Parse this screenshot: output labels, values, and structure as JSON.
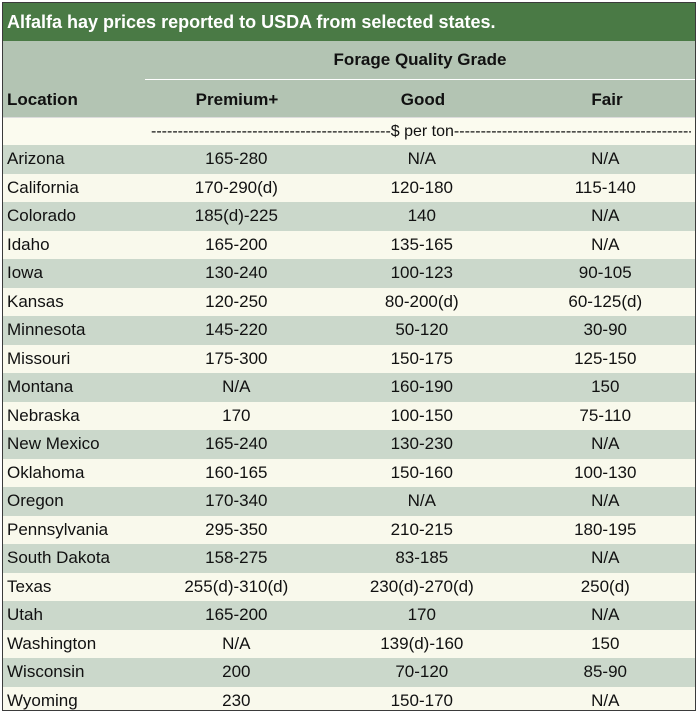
{
  "title": "Alfalfa hay prices reported to USDA from selected states.",
  "header": {
    "group": "Forage Quality Grade",
    "location": "Location",
    "columns": [
      "Premium+",
      "Good",
      "Fair"
    ]
  },
  "unit_row": "---------------------------------------------$ per ton-----------------------------------------------",
  "rows": [
    {
      "location": "Arizona",
      "premium": "165-280",
      "good": "N/A",
      "fair": "N/A"
    },
    {
      "location": "California",
      "premium": "170-290(d)",
      "good": "120-180",
      "fair": "115-140"
    },
    {
      "location": "Colorado",
      "premium": "185(d)-225",
      "good": "140",
      "fair": "N/A"
    },
    {
      "location": "Idaho",
      "premium": "165-200",
      "good": "135-165",
      "fair": "N/A"
    },
    {
      "location": "Iowa",
      "premium": "130-240",
      "good": "100-123",
      "fair": "90-105"
    },
    {
      "location": "Kansas",
      "premium": "120-250",
      "good": "80-200(d)",
      "fair": "60-125(d)"
    },
    {
      "location": "Minnesota",
      "premium": "145-220",
      "good": "50-120",
      "fair": "30-90"
    },
    {
      "location": "Missouri",
      "premium": "175-300",
      "good": "150-175",
      "fair": "125-150"
    },
    {
      "location": "Montana",
      "premium": "N/A",
      "good": "160-190",
      "fair": "150"
    },
    {
      "location": "Nebraska",
      "premium": "170",
      "good": "100-150",
      "fair": "75-110"
    },
    {
      "location": "New Mexico",
      "premium": "165-240",
      "good": "130-230",
      "fair": "N/A"
    },
    {
      "location": "Oklahoma",
      "premium": "160-165",
      "good": "150-160",
      "fair": "100-130"
    },
    {
      "location": "Oregon",
      "premium": "170-340",
      "good": "N/A",
      "fair": "N/A"
    },
    {
      "location": "Pennsylvania",
      "premium": "295-350",
      "good": "210-215",
      "fair": "180-195"
    },
    {
      "location": "South Dakota",
      "premium": "158-275",
      "good": "83-185",
      "fair": "N/A"
    },
    {
      "location": "Texas",
      "premium": "255(d)-310(d)",
      "good": "230(d)-270(d)",
      "fair": "250(d)"
    },
    {
      "location": "Utah",
      "premium": "165-200",
      "good": "170",
      "fair": "N/A"
    },
    {
      "location": "Washington",
      "premium": "N/A",
      "good": "139(d)-160",
      "fair": "150"
    },
    {
      "location": "Wisconsin",
      "premium": "200",
      "good": "70-120",
      "fair": "85-90"
    },
    {
      "location": "Wyoming",
      "premium": "230",
      "good": "150-170",
      "fair": "N/A"
    }
  ],
  "colors": {
    "title_bg": "#4a7a45",
    "header_bg": "#b3c4b3",
    "row_green": "#cbd8cb",
    "row_cream": "#f9f9ec"
  }
}
